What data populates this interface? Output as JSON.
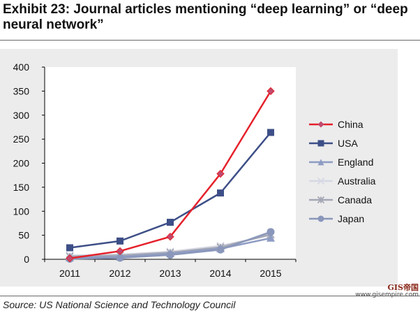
{
  "title": "Exhibit 23: Journal articles mentioning “deep learning” or “deep neural network”",
  "source": "Source: US National Science and Technology Council",
  "watermark": {
    "logo_text": "GIS帝国",
    "url": "www.gisempire.com"
  },
  "chart_data": {
    "type": "line",
    "title": "",
    "xlabel": "",
    "ylabel": "",
    "x": [
      "2011",
      "2012",
      "2013",
      "2014",
      "2015"
    ],
    "ylim": [
      0,
      400
    ],
    "yticks": [
      0,
      50,
      100,
      150,
      200,
      250,
      300,
      350,
      400
    ],
    "grid": false,
    "legend_position": "right",
    "series": [
      {
        "name": "China",
        "values": [
          2,
          17,
          47,
          178,
          350
        ],
        "color": "#e5212b",
        "marker": "diamond",
        "linewidth": 2.5
      },
      {
        "name": "USA",
        "values": [
          24,
          38,
          77,
          138,
          264
        ],
        "color": "#3d4f87",
        "marker": "square",
        "linewidth": 2.5
      },
      {
        "name": "England",
        "values": [
          3,
          5,
          12,
          22,
          44
        ],
        "color": "#8e9cc4",
        "marker": "triangle",
        "linewidth": 2.5
      },
      {
        "name": "Australia",
        "values": [
          8,
          10,
          16,
          28,
          50
        ],
        "color": "#d6d8e3",
        "marker": "x",
        "linewidth": 2.5
      },
      {
        "name": "Canada",
        "values": [
          6,
          8,
          14,
          25,
          52
        ],
        "color": "#a4a7b4",
        "marker": "asterisk",
        "linewidth": 2.5
      },
      {
        "name": "Japan",
        "values": [
          1,
          3,
          9,
          20,
          57
        ],
        "color": "#8a97bb",
        "marker": "circle",
        "linewidth": 2.5
      }
    ]
  }
}
